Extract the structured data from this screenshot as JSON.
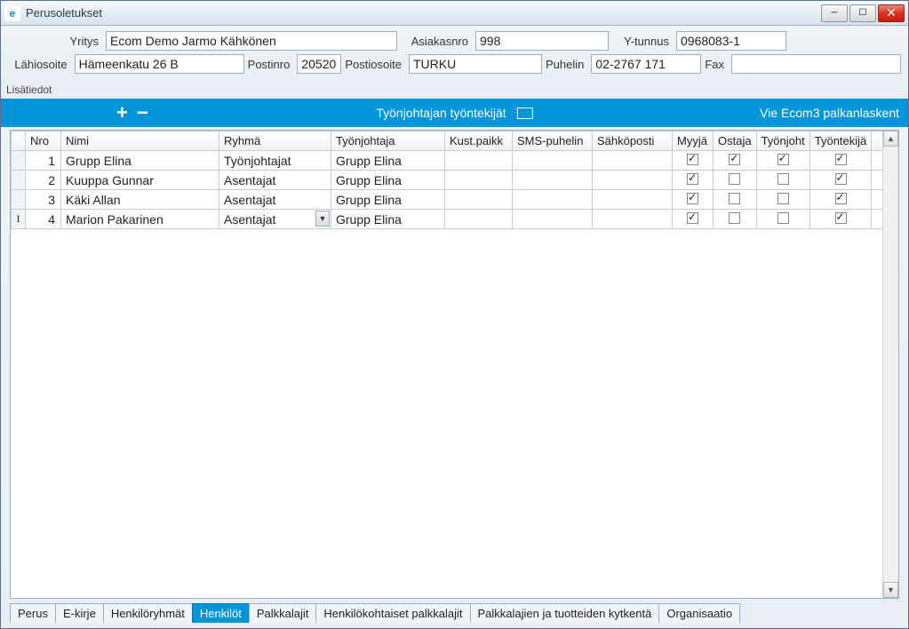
{
  "window": {
    "title": "Perusoletukset"
  },
  "form": {
    "labels": {
      "yritys": "Yritys",
      "asiakasnro": "Asiakasnro",
      "ytunnus": "Y-tunnus",
      "lahiosoite": "Lähiosoite",
      "postinro": "Postinro",
      "postiosoite": "Postiosoite",
      "puhelin": "Puhelin",
      "fax": "Fax"
    },
    "values": {
      "yritys": "Ecom Demo Jarmo Kähkönen",
      "asiakasnro": "998",
      "ytunnus": "0968083-1",
      "lahiosoite": "Hämeenkatu 26 B",
      "postinro": "20520",
      "postiosoite": "TURKU",
      "puhelin": "02-2767 171",
      "fax": ""
    },
    "section_label": "Lisätiedot"
  },
  "toolbar": {
    "center_label": "Työnjohtajan työntekijät",
    "right_label": "Vie Ecom3 palkanlaskent"
  },
  "grid": {
    "columns": {
      "nro": "Nro",
      "nimi": "Nimi",
      "ryhma": "Ryhmä",
      "tyonjohtaja": "Työnjohtaja",
      "kustpaikk": "Kust.paikk",
      "smspuhelin": "SMS-puhelin",
      "sahkoposti": "Sähköposti",
      "myyja": "Myyjä",
      "ostaja": "Ostaja",
      "tyonjoht": "Työnjoht",
      "tyontekija": "Työntekijä"
    },
    "rows": [
      {
        "nro": "1",
        "nimi": "Grupp Elina",
        "ryhma": "Työnjohtajat",
        "tyonjohtaja": "Grupp Elina",
        "kustpaikk": "",
        "smspuhelin": "",
        "sahkoposti": "",
        "myyja": true,
        "ostaja": true,
        "tyonjoht": true,
        "tyontekija": true,
        "editing": false
      },
      {
        "nro": "2",
        "nimi": "Kuuppa Gunnar",
        "ryhma": "Asentajat",
        "tyonjohtaja": "Grupp Elina",
        "kustpaikk": "",
        "smspuhelin": "",
        "sahkoposti": "",
        "myyja": true,
        "ostaja": false,
        "tyonjoht": false,
        "tyontekija": true,
        "editing": false
      },
      {
        "nro": "3",
        "nimi": "Käki Allan",
        "ryhma": "Asentajat",
        "tyonjohtaja": "Grupp Elina",
        "kustpaikk": "",
        "smspuhelin": "",
        "sahkoposti": "",
        "myyja": true,
        "ostaja": false,
        "tyonjoht": false,
        "tyontekija": true,
        "editing": false
      },
      {
        "nro": "4",
        "nimi": "Marion Pakarinen",
        "ryhma": "Asentajat",
        "tyonjohtaja": "Grupp Elina",
        "kustpaikk": "",
        "smspuhelin": "",
        "sahkoposti": "",
        "myyja": true,
        "ostaja": false,
        "tyonjoht": false,
        "tyontekija": true,
        "editing": true
      }
    ]
  },
  "tabs": {
    "items": [
      {
        "label": "Perus",
        "active": false
      },
      {
        "label": "E-kirje",
        "active": false
      },
      {
        "label": "Henkilöryhmät",
        "active": false
      },
      {
        "label": "Henkilöt",
        "active": true
      },
      {
        "label": "Palkkalajit",
        "active": false
      },
      {
        "label": "Henkilökohtaiset palkkalajit",
        "active": false
      },
      {
        "label": "Palkkalajien ja tuotteiden kytkentä",
        "active": false
      },
      {
        "label": "Organisaatio",
        "active": false
      }
    ]
  },
  "colors": {
    "accent": "#0095d9",
    "border": "#9ab0c4",
    "window_bg_top": "#f0f4f8",
    "window_bg_bottom": "#e8eef4"
  }
}
